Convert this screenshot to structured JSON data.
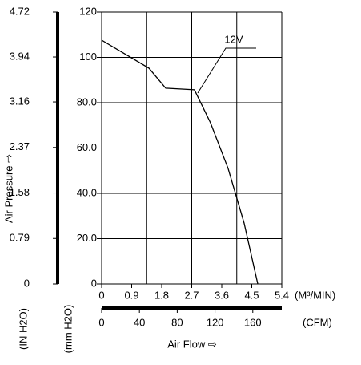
{
  "chart_data": {
    "type": "line",
    "x_label": "Air Flow ⇨",
    "y_label": "Air Pressure ⇨",
    "x_unit": "(M³/MIN)",
    "x2_unit": "(CFM)",
    "y_unit": "(mm H2O)",
    "y2_unit": "(IN H2O)",
    "xlim": [
      0,
      5.4
    ],
    "xticks": [
      0,
      0.9,
      1.8,
      2.7,
      3.6,
      4.5,
      5.4
    ],
    "x2lim": [
      0,
      190.7
    ],
    "x2ticks": [
      0,
      40,
      80,
      120,
      160
    ],
    "ylim": [
      0,
      120
    ],
    "yticks": [
      0,
      {
        "value": 20,
        "label": "20.0"
      },
      {
        "value": 40,
        "label": "40.0"
      },
      {
        "value": 60,
        "label": "60.0"
      },
      {
        "value": 80,
        "label": "80.0"
      },
      100,
      120
    ],
    "y2lim": [
      0,
      4.72
    ],
    "y2ticks": [
      0,
      0.79,
      1.58,
      2.37,
      3.16,
      3.94,
      4.72
    ],
    "grid_x": [
      0,
      1.35,
      2.7,
      4.05,
      5.4
    ],
    "series": [
      {
        "name": "12V",
        "color": "#000000",
        "x": [
          0,
          1.42,
          1.92,
          2.78,
          3.26,
          3.79,
          4.27,
          4.68
        ],
        "values": [
          107.6,
          95.2,
          86.4,
          85.7,
          71.2,
          51,
          26.9,
          0
        ]
      }
    ]
  }
}
